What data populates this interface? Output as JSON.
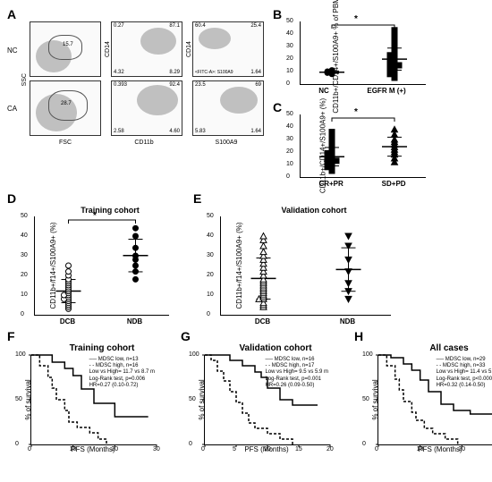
{
  "panelA": {
    "label": "A",
    "row_labels": [
      "NC",
      "CA"
    ],
    "x_axes": [
      "FSC",
      "CD11b",
      "S100A9"
    ],
    "y_axes": [
      "SSC",
      "CD14",
      "CD14"
    ],
    "fitca_label": "<FITC-A>: S100A9",
    "boxes": {
      "nc_fsc": {
        "gate_pct": "15.7"
      },
      "nc_cd11b": {
        "q": [
          "0.27",
          "87.1",
          "4.32",
          "8.29"
        ]
      },
      "nc_s100a9": {
        "q": [
          "60.4",
          "25.4",
          "12.5",
          "1.64"
        ]
      },
      "ca_fsc": {
        "gate_pct": "28.7"
      },
      "ca_cd11b": {
        "q": [
          "0.393",
          "92.4",
          "2.58",
          "4.60"
        ]
      },
      "ca_s100a9": {
        "q": [
          "23.5",
          "69",
          "5.83",
          "1.64"
        ]
      }
    }
  },
  "panelB": {
    "label": "B",
    "ylab": "CD11b+/CD14+/S100A9+ % of PBMC",
    "ymax": 50,
    "ytick": 10,
    "groups": [
      "NC",
      "EGFR M (+)"
    ],
    "sig": "*",
    "nc": [
      8,
      9,
      10,
      9,
      11,
      10
    ],
    "eg": [
      5,
      7,
      8,
      8,
      10,
      10,
      11,
      12,
      12,
      13,
      13,
      14,
      14,
      15,
      15,
      15,
      16,
      16,
      17,
      17,
      18,
      18,
      19,
      19,
      20,
      20,
      21,
      21,
      22,
      23,
      23,
      24,
      25,
      26,
      27,
      28,
      29,
      30,
      31,
      33,
      34,
      36,
      39,
      43
    ]
  },
  "panelC": {
    "label": "C",
    "ylab": "CD11b+/CD14+/S100A9+ (%)",
    "ymax": 50,
    "ytick": 10,
    "groups": [
      "CR+PR",
      "SD+PD"
    ],
    "sig": "*",
    "crpr": [
      5,
      6,
      7,
      8,
      8,
      9,
      9,
      10,
      10,
      11,
      11,
      12,
      12,
      13,
      13,
      13,
      14,
      14,
      15,
      15,
      16,
      16,
      17,
      17,
      18,
      18,
      19,
      19,
      20,
      21,
      22,
      23,
      24,
      26,
      28,
      30,
      33,
      36
    ],
    "sdpd": [
      12,
      15,
      18,
      20,
      22,
      24,
      26,
      28,
      30,
      34,
      38
    ]
  },
  "panelD": {
    "label": "D",
    "title": "Training cohort",
    "ylab": "CD11b+/f14+/S100A9+ (%)",
    "ymax": 50,
    "ytick": 10,
    "groups": [
      "DCB",
      "NDB"
    ],
    "sig": "*",
    "dcb": [
      3,
      4,
      5,
      6,
      7,
      8,
      8,
      9,
      10,
      10,
      11,
      12,
      13,
      14,
      15,
      16,
      17,
      18,
      20,
      22,
      25
    ],
    "ndb": [
      18,
      22,
      25,
      28,
      30,
      34,
      40,
      44
    ]
  },
  "panelE": {
    "label": "E",
    "title": "Validation cohort",
    "ylab": "CD11b+/f14+/S100A9+ (%)",
    "ymax": 50,
    "ytick": 10,
    "groups": [
      "DCB",
      "NDB"
    ],
    "dcb": [
      4,
      5,
      6,
      8,
      8,
      9,
      10,
      11,
      12,
      13,
      14,
      15,
      16,
      17,
      18,
      20,
      22,
      24,
      26,
      28,
      30,
      32,
      35,
      38,
      40
    ],
    "ndb": [
      8,
      12,
      16,
      22,
      28,
      35,
      40
    ]
  },
  "panelF": {
    "label": "F",
    "title": "Training cohort",
    "ylab": "% of survival",
    "xlab": "PFS (Months)",
    "xmax": 30,
    "xtick": 10,
    "ymax": 100,
    "ytick": 50,
    "legend": [
      "MDSC low, n=13",
      "MDSC high, n=16",
      "Low vs High= 11.7 vs 8.7 m",
      "Log-Rank test, p=0.006",
      "HR=0.27 (0.10-0.72)"
    ],
    "low": [
      [
        0,
        100
      ],
      [
        3,
        100
      ],
      [
        5,
        92
      ],
      [
        8,
        85
      ],
      [
        10,
        77
      ],
      [
        12,
        62
      ],
      [
        15,
        46
      ],
      [
        20,
        31
      ],
      [
        25,
        31
      ],
      [
        28,
        31
      ]
    ],
    "high": [
      [
        0,
        100
      ],
      [
        2,
        88
      ],
      [
        4,
        75
      ],
      [
        5,
        63
      ],
      [
        6,
        50
      ],
      [
        8,
        38
      ],
      [
        9,
        25
      ],
      [
        11,
        19
      ],
      [
        14,
        13
      ],
      [
        16,
        6
      ],
      [
        18,
        0
      ]
    ]
  },
  "panelG": {
    "label": "G",
    "title": "Validation cohort",
    "ylab": "% of survival",
    "xlab": "PFS (Months)",
    "xmax": 20,
    "xtick": 5,
    "ymax": 100,
    "ytick": 50,
    "legend": [
      "MDSC low, n=16",
      "MDSC high, n=17",
      "Low vs High= 9.5 vs 5.9 m",
      "Log-Rank test, p=0.001",
      "HR=0.26 (0.09-0.50)"
    ],
    "low": [
      [
        0,
        100
      ],
      [
        2,
        100
      ],
      [
        4,
        94
      ],
      [
        6,
        88
      ],
      [
        8,
        81
      ],
      [
        9,
        75
      ],
      [
        10,
        63
      ],
      [
        12,
        50
      ],
      [
        14,
        44
      ],
      [
        16,
        44
      ],
      [
        18,
        44
      ]
    ],
    "high": [
      [
        0,
        100
      ],
      [
        1,
        94
      ],
      [
        2,
        82
      ],
      [
        3,
        71
      ],
      [
        4,
        59
      ],
      [
        5,
        47
      ],
      [
        6,
        35
      ],
      [
        7,
        24
      ],
      [
        8,
        18
      ],
      [
        10,
        12
      ],
      [
        12,
        6
      ],
      [
        14,
        0
      ]
    ]
  },
  "panelH": {
    "label": "H",
    "title": "All cases",
    "ylab": "% of survival",
    "xlab": "PFS (Months)",
    "xmax": 30,
    "xtick": 10,
    "ymax": 100,
    "ytick": 50,
    "legend": [
      "MDSC low, n=29",
      "MDSC high, n=33",
      "Low vs High= 11.4 vs 5.9 m",
      "Log-Rank test, p<0.0001",
      "HR=0.32 (0.14-0.50)"
    ],
    "low": [
      [
        0,
        100
      ],
      [
        3,
        97
      ],
      [
        6,
        90
      ],
      [
        8,
        83
      ],
      [
        10,
        72
      ],
      [
        12,
        59
      ],
      [
        15,
        45
      ],
      [
        18,
        38
      ],
      [
        22,
        34
      ],
      [
        28,
        34
      ]
    ],
    "high": [
      [
        0,
        100
      ],
      [
        2,
        88
      ],
      [
        4,
        73
      ],
      [
        5,
        61
      ],
      [
        6,
        48
      ],
      [
        8,
        36
      ],
      [
        9,
        27
      ],
      [
        11,
        18
      ],
      [
        13,
        12
      ],
      [
        16,
        6
      ],
      [
        19,
        0
      ]
    ]
  },
  "colors": {
    "marker": "#000",
    "open": "#fff",
    "line_low": "#000",
    "line_high": "#000"
  }
}
